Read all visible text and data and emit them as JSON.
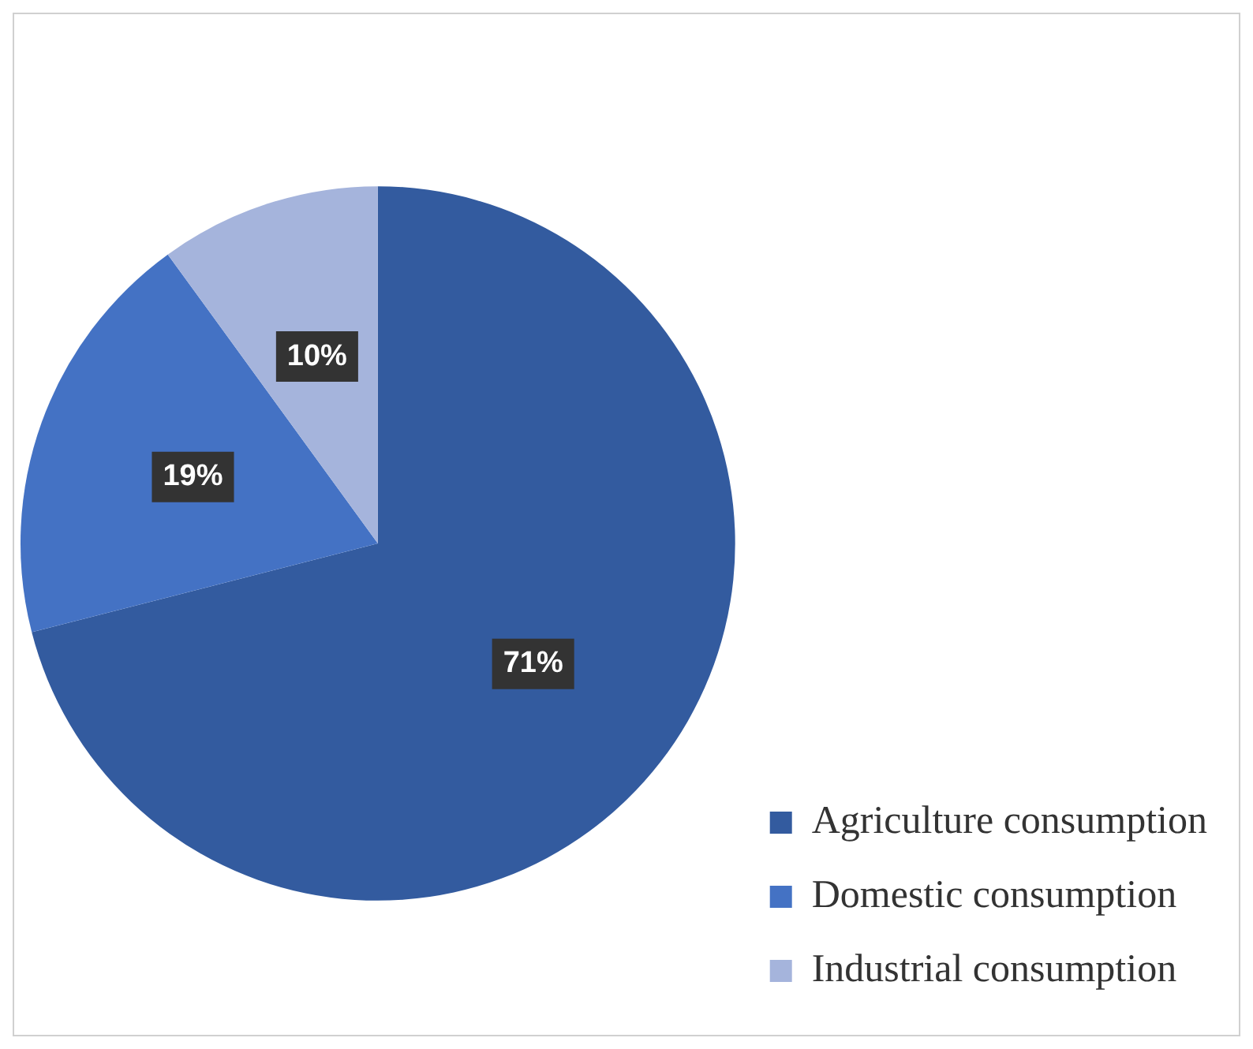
{
  "chart_data": {
    "type": "pie",
    "categories": [
      "Agriculture consumption",
      "Domestic consumption",
      "Industrial consumption"
    ],
    "values": [
      71,
      19,
      10
    ],
    "colors": [
      "#335b9f",
      "#4472c4",
      "#a5b4dc"
    ],
    "value_labels": [
      "71%",
      "19%",
      "10%"
    ],
    "legend": "bottom right"
  }
}
